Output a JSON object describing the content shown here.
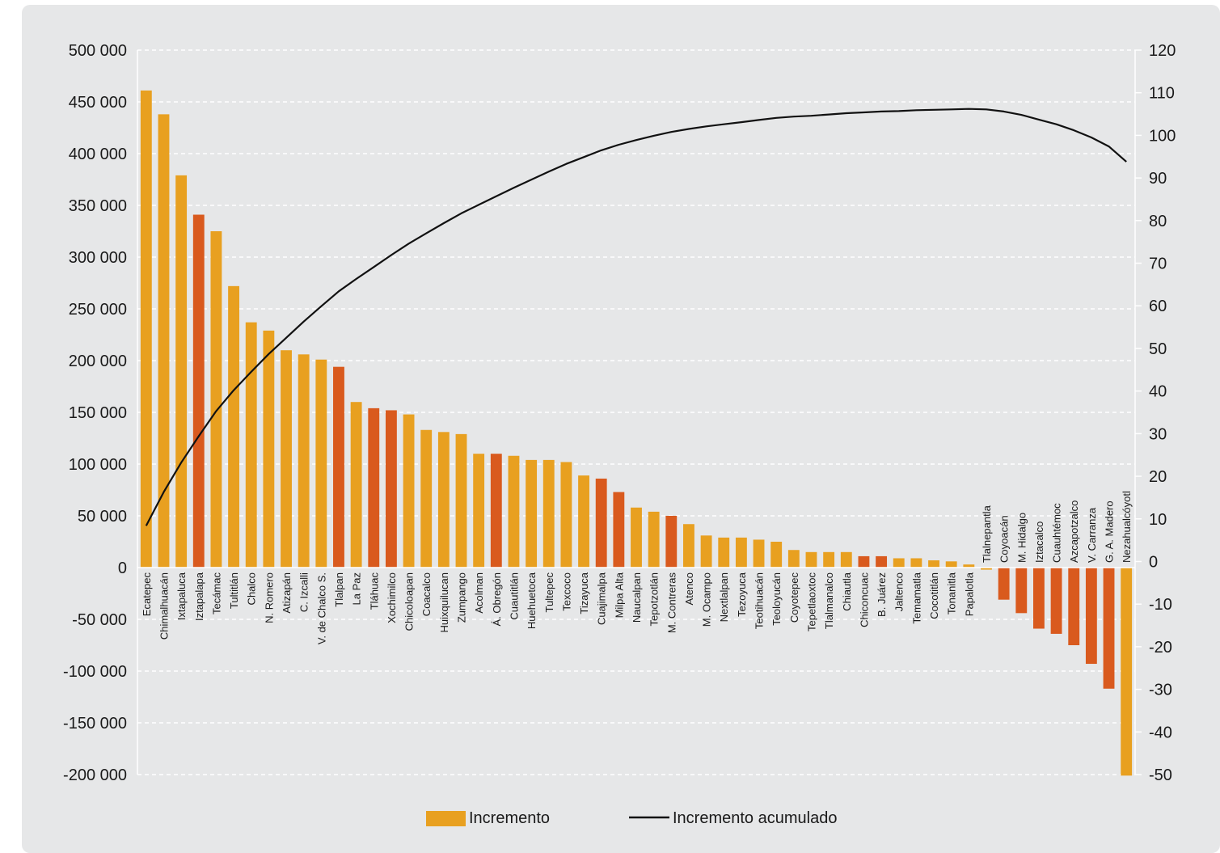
{
  "colors": {
    "panel": "#e6e7e8",
    "bar_edomex": "#e8a020",
    "bar_cdmx": "#d95a1e",
    "line": "#111111",
    "grid": "#ffffff"
  },
  "chart_data": {
    "type": "bar",
    "y_left": {
      "min": -200000,
      "max": 500000,
      "ticks": [
        500000,
        450000,
        400000,
        350000,
        300000,
        250000,
        200000,
        150000,
        100000,
        50000,
        0,
        -50000,
        -100000,
        -150000,
        -200000
      ],
      "tick_labels": [
        "500 000",
        "450 000",
        "400 000",
        "350 000",
        "300 000",
        "250 000",
        "200 000",
        "150 000",
        "100 000",
        "50 000",
        "0",
        "-50 000",
        "-100 000",
        "-150 000",
        "-200 000"
      ]
    },
    "y_right": {
      "min": -50,
      "max": 120,
      "ticks": [
        120,
        110,
        100,
        90,
        80,
        70,
        60,
        50,
        40,
        30,
        20,
        10,
        0,
        -10,
        -20,
        -30,
        -40,
        -50
      ],
      "tick_labels": [
        "120",
        "110",
        "100",
        "90",
        "80",
        "70",
        "60",
        "50",
        "40",
        "30",
        "20",
        "10",
        "0",
        "-10",
        "-20",
        "-30",
        "-40",
        "-50"
      ]
    },
    "grid": true,
    "legend_position": "bottom",
    "categories": [
      "Ecatepec",
      "Chimalhuacán",
      "Ixtapaluca",
      "Iztapalapa",
      "Tecámac",
      "Tultitlán",
      "Chalco",
      "N. Romero",
      "Atizapán",
      "C. Izcalli",
      "V. de Chalco S.",
      "Tlalpan",
      "La Paz",
      "Tláhuac",
      "Xochimilco",
      "Chicoloapan",
      "Coacalco",
      "Huixquilucan",
      "Zumpango",
      "Acolman",
      "Á. Obregón",
      "Cuautitlán",
      "Huehuetoca",
      "Tultepec",
      "Texcoco",
      "Tizayuca",
      "Cuajimalpa",
      "Milpa Alta",
      "Naucalpan",
      "Tepotzotlán",
      "M. Contreras",
      "Atenco",
      "M. Ocampo",
      "Nextlalpan",
      "Tezoyuca",
      "Teotihuacán",
      "Teoloyucán",
      "Coyotepec",
      "Tepetlaoxtoc",
      "Tlalmanalco",
      "Chiautla",
      "Chiconcuac",
      "B. Juárez",
      "Jaltenco",
      "Temamatla",
      "Cocotitlán",
      "Tonanitla",
      "Papalotla",
      "Tlalnepantla",
      "Coyoacán",
      "M. Hidalgo",
      "Iztacalco",
      "Cuauhtémoc",
      "Azcapotzalco",
      "V. Carranza",
      "G. A. Madero",
      "Nezahualcóyotl"
    ],
    "group": [
      "edomex",
      "edomex",
      "edomex",
      "cdmx",
      "edomex",
      "edomex",
      "edomex",
      "edomex",
      "edomex",
      "edomex",
      "edomex",
      "cdmx",
      "edomex",
      "cdmx",
      "cdmx",
      "edomex",
      "edomex",
      "edomex",
      "edomex",
      "edomex",
      "cdmx",
      "edomex",
      "edomex",
      "edomex",
      "edomex",
      "edomex",
      "cdmx",
      "cdmx",
      "edomex",
      "edomex",
      "cdmx",
      "edomex",
      "edomex",
      "edomex",
      "edomex",
      "edomex",
      "edomex",
      "edomex",
      "edomex",
      "edomex",
      "edomex",
      "cdmx",
      "cdmx",
      "edomex",
      "edomex",
      "edomex",
      "edomex",
      "edomex",
      "edomex",
      "cdmx",
      "cdmx",
      "cdmx",
      "cdmx",
      "cdmx",
      "cdmx",
      "cdmx",
      "edomex"
    ],
    "series": [
      {
        "name": "Incremento",
        "axis": "left",
        "values": [
          461000,
          438000,
          379000,
          341000,
          325000,
          272000,
          237000,
          229000,
          210000,
          206000,
          201000,
          194000,
          160000,
          154000,
          152000,
          148000,
          133000,
          131000,
          129000,
          110000,
          110000,
          108000,
          104000,
          104000,
          102000,
          89000,
          86000,
          73000,
          58000,
          54000,
          50000,
          42000,
          31000,
          29000,
          29000,
          27000,
          25000,
          17000,
          15000,
          15000,
          15000,
          11000,
          11000,
          9000,
          9000,
          7000,
          6000,
          3000,
          -2000,
          -31000,
          -44000,
          -59000,
          -64000,
          -75000,
          -93000,
          -117000,
          -201000
        ]
      },
      {
        "name": "Incremento acumulado",
        "axis": "right",
        "type": "line",
        "values": [
          8.4,
          16.3,
          23.2,
          29.4,
          35.3,
          40.2,
          44.5,
          48.7,
          52.5,
          56.3,
          59.9,
          63.4,
          66.3,
          69.1,
          71.9,
          74.6,
          77.0,
          79.4,
          81.7,
          83.7,
          85.7,
          87.7,
          89.6,
          91.5,
          93.3,
          94.9,
          96.5,
          97.8,
          98.9,
          99.9,
          100.8,
          101.5,
          102.1,
          102.6,
          103.1,
          103.6,
          104.1,
          104.4,
          104.6,
          104.9,
          105.2,
          105.4,
          105.6,
          105.7,
          105.9,
          106.0,
          106.1,
          106.2,
          106.1,
          105.6,
          104.8,
          103.7,
          102.6,
          101.2,
          99.5,
          97.4,
          93.8
        ]
      }
    ]
  },
  "legend": {
    "items": [
      {
        "label": "Incremento",
        "swatch": "bar"
      },
      {
        "label": "Incremento acumulado",
        "swatch": "line"
      }
    ]
  }
}
